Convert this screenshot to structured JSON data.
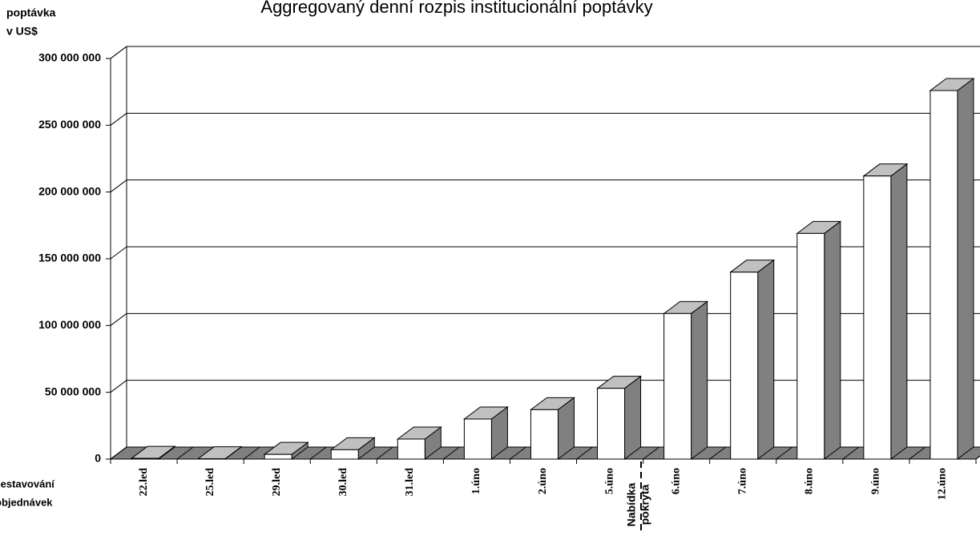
{
  "chart_data": {
    "type": "bar3d",
    "title": "Aggregovaný denní rozpis institucionální poptávky",
    "y_label": [
      "poptávka",
      "v  US$"
    ],
    "x_label": [
      "Sestavování",
      "objednávek"
    ],
    "annotation": [
      "Nabídka",
      "pokryta"
    ],
    "categories": [
      "22.led",
      "25.led",
      "29.led",
      "30.led",
      "31.led",
      "1.úno",
      "2.úno",
      "5.úno",
      "6.úno",
      "7.úno",
      "8.úno",
      "9.úno",
      "12.úno"
    ],
    "values": [
      500000,
      200000,
      3500000,
      7000000,
      15000000,
      30000000,
      37000000,
      53000000,
      109000000,
      140000000,
      169000000,
      212000000,
      276000000
    ],
    "colors": {
      "front": "#ffffff",
      "top": "#c0c0c0",
      "side": "#808080",
      "floor": "#808080"
    },
    "ylim": [
      0,
      300000000
    ],
    "yticks": [
      0,
      {
        "value": 50000000,
        "label": "50 000 000"
      },
      {
        "value": 100000000,
        "label": "100 000 000"
      },
      {
        "value": 150000000,
        "label": "150 000 000"
      },
      {
        "value": 200000000,
        "label": "200 000 000"
      },
      {
        "value": 250000000,
        "label": "250 000 000"
      },
      {
        "value": 300000000,
        "label": "300 000 000"
      }
    ],
    "grid": true
  }
}
